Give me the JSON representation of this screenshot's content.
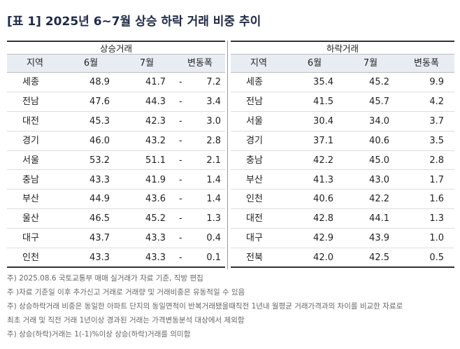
{
  "header": {
    "title": "[표 1] 2025년 6~7월 상승 하락 거래 비중 추이"
  },
  "table": {
    "groups": [
      {
        "label": "상승거래",
        "columns": [
          "지역",
          "6월",
          "7월",
          "변동폭"
        ],
        "rows": [
          [
            "세종",
            "48.9",
            "41.7",
            {
              "sign": "-",
              "value": "7.2"
            }
          ],
          [
            "전남",
            "47.6",
            "44.3",
            {
              "sign": "-",
              "value": "3.4"
            }
          ],
          [
            "대전",
            "45.3",
            "42.3",
            {
              "sign": "-",
              "value": "3.0"
            }
          ],
          [
            "경기",
            "46.0",
            "43.2",
            {
              "sign": "-",
              "value": "2.8"
            }
          ],
          [
            "서울",
            "53.2",
            "51.1",
            {
              "sign": "-",
              "value": "2.1"
            }
          ],
          [
            "충남",
            "43.3",
            "41.9",
            {
              "sign": "-",
              "value": "1.4"
            }
          ],
          [
            "부산",
            "44.9",
            "43.6",
            {
              "sign": "-",
              "value": "1.4"
            }
          ],
          [
            "울산",
            "46.5",
            "45.2",
            {
              "sign": "-",
              "value": "1.3"
            }
          ],
          [
            "대구",
            "43.7",
            "43.3",
            {
              "sign": "-",
              "value": "0.4"
            }
          ],
          [
            "인천",
            "43.3",
            "43.3",
            {
              "sign": "-",
              "value": "0.1"
            }
          ]
        ]
      },
      {
        "label": "하락거래",
        "columns": [
          "지역",
          "6월",
          "7월",
          "변동폭"
        ],
        "rows": [
          [
            "세종",
            "35.4",
            "45.2",
            "9.9"
          ],
          [
            "전남",
            "41.5",
            "45.7",
            "4.2"
          ],
          [
            "서울",
            "30.4",
            "34.0",
            "3.7"
          ],
          [
            "경기",
            "37.1",
            "40.6",
            "3.5"
          ],
          [
            "충남",
            "42.2",
            "45.0",
            "2.8"
          ],
          [
            "부산",
            "41.3",
            "43.0",
            "1.7"
          ],
          [
            "인천",
            "40.6",
            "42.2",
            "1.6"
          ],
          [
            "대전",
            "42.8",
            "44.1",
            "1.3"
          ],
          [
            "대구",
            "42.9",
            "43.9",
            "1.0"
          ],
          [
            "전북",
            "42.0",
            "42.5",
            "0.5"
          ]
        ]
      }
    ]
  },
  "notes": [
    "주) 2025.08.6 국토교통부 매매 실거래가 자료 기준, 직방 편집",
    "주 )자료 기준일 이후 추가신고 거래로 거래량 및 거래비중은 유동적일 수 있음",
    "주) 상승하락거래 비중은 동일한 아파트 단지의 동일면적이 반복거래됐을때직전 1년내 월평균 거래가격과의 차이를 비교한 자료로",
    "최초 거래 및 직전 거래 1년이상 경과된 거래는 가격변동분석 대상에서 제외함",
    "주) 상승(하락)거래는 1(-1)%이상 상승(하락)거래를 의미함"
  ]
}
